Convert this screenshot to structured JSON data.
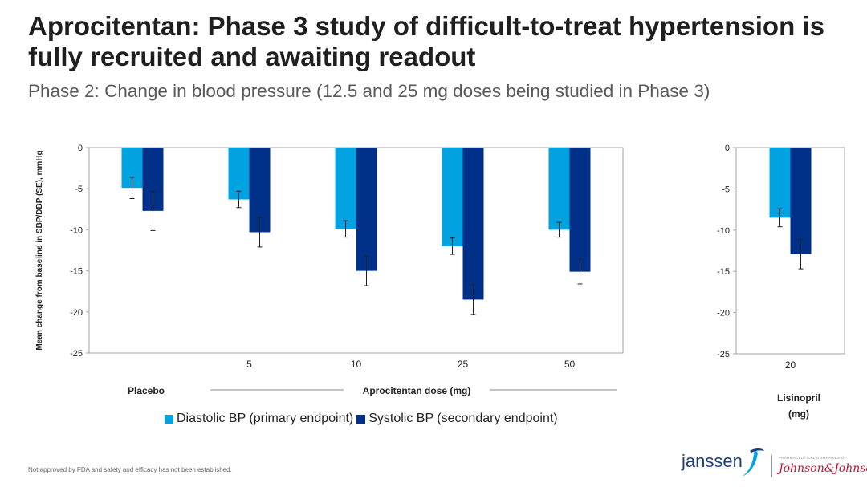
{
  "title": "Aprocitentan: Phase 3 study of difficult-to-treat hypertension is fully recruited and awaiting readout",
  "subtitle": "Phase 2: Change in blood pressure (12.5 and 25 mg doses being studied in Phase 3)",
  "chart_data": [
    {
      "type": "bar",
      "categories": [
        "",
        "5",
        "10",
        "25",
        "50"
      ],
      "group_labels": {
        "placebo": "Placebo",
        "dose_axis": "Aprocitentan dose (mg)"
      },
      "ylabel": "Mean change from baseline in SBP/DBP (SE), mmHg",
      "ylim": [
        -25,
        0
      ],
      "yticks": [
        0,
        -5,
        -10,
        -15,
        -20,
        -25
      ],
      "series": [
        {
          "name": "Diastolic BP (primary endpoint)",
          "color": "#00a3e0",
          "values": [
            -4.9,
            -6.3,
            -9.9,
            -12.0,
            -10.0
          ],
          "errors": [
            1.3,
            1.0,
            1.0,
            1.0,
            0.9
          ]
        },
        {
          "name": "Systolic BP (secondary endpoint)",
          "color": "#003087",
          "values": [
            -7.7,
            -10.3,
            -15.0,
            -18.5,
            -15.1
          ],
          "errors": [
            2.4,
            1.8,
            1.8,
            1.8,
            1.5
          ]
        }
      ]
    },
    {
      "type": "bar",
      "categories": [
        "20"
      ],
      "group_label": "Lisinopril (mg)",
      "ylim": [
        -25,
        0
      ],
      "yticks": [
        0,
        -5,
        -10,
        -15,
        -20,
        -25
      ],
      "series": [
        {
          "name": "Diastolic BP (primary endpoint)",
          "color": "#00a3e0",
          "values": [
            -8.5
          ],
          "errors": [
            1.1
          ]
        },
        {
          "name": "Systolic BP (secondary endpoint)",
          "color": "#003087",
          "values": [
            -12.9
          ],
          "errors": [
            1.8
          ]
        }
      ]
    }
  ],
  "legend": {
    "diastolic": {
      "label": "Diastolic BP (primary endpoint)",
      "color": "#00a3e0"
    },
    "systolic": {
      "label": "Systolic BP (secondary endpoint)",
      "color": "#003087"
    }
  },
  "footer": "Not approved by FDA and safety and efficacy has not been established.",
  "logo": {
    "janssen": "janssen",
    "jj_tagline": "PHARMACEUTICAL COMPANIES OF",
    "jj": "Johnson&Johnson"
  }
}
